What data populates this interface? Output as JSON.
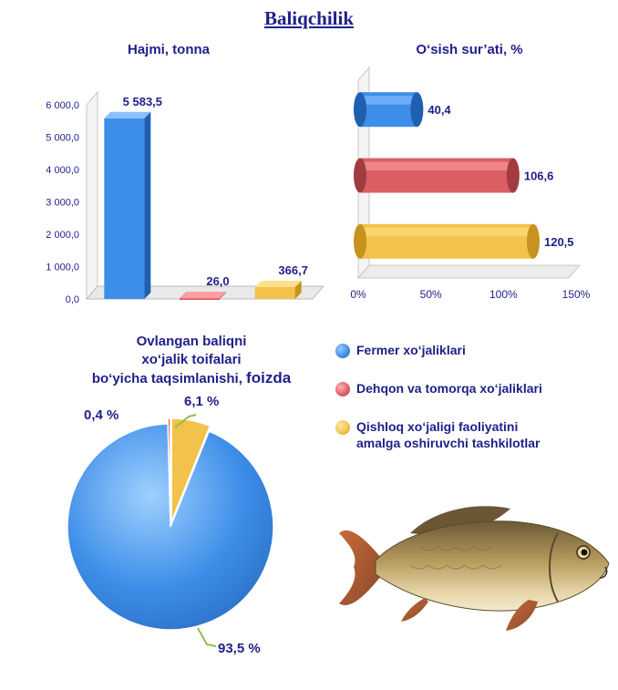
{
  "title": "Baliqchilik",
  "colors": {
    "blue": "#3d8ee8",
    "red": "#d95f63",
    "yellow": "#f2c24a",
    "text": "#1f1f8a"
  },
  "chart_data": [
    {
      "type": "bar",
      "title": "Hajmi, tonna",
      "categories": [
        "Fermer xo‘jaliklari",
        "Dehqon va tomorqa xo‘jaliklari",
        "Qishloq xo‘jaligi faoliyatini amalga oshiruvchi tashkilotlar"
      ],
      "values": [
        5583.5,
        26.0,
        366.7
      ],
      "data_labels": [
        "5 583,5",
        "26,0",
        "366,7"
      ],
      "ylim": [
        0,
        6000
      ],
      "yticks": [
        0,
        1000,
        2000,
        3000,
        4000,
        5000,
        6000
      ],
      "ytick_labels": [
        "0,0",
        "1 000,0",
        "2 000,0",
        "3 000,0",
        "4 000,0",
        "5 000,0",
        "6 000,0"
      ]
    },
    {
      "type": "bar",
      "orientation": "horizontal",
      "title": "O‘sish sur’ati, %",
      "categories": [
        "Fermer xo‘jaliklari",
        "Dehqon va tomorqa xo‘jaliklari",
        "Qishloq xo‘jaligi faoliyatini amalga oshiruvchi tashkilotlar"
      ],
      "values": [
        40.4,
        106.6,
        120.5
      ],
      "data_labels": [
        "40,4",
        "106,6",
        "120,5"
      ],
      "xlim": [
        0,
        150
      ],
      "xticks": [
        0,
        50,
        100,
        150
      ],
      "xtick_labels": [
        "0%",
        "50%",
        "100%",
        "150%"
      ]
    },
    {
      "type": "pie",
      "title_line1": "Ovlangan baliqni",
      "title_line2": "xo‘jalik toifalari",
      "title_line3": "bo‘yicha taqsimlanishi,",
      "title_emph": "foizda",
      "categories": [
        "Fermer xo‘jaliklari",
        "Dehqon va tomorqa xo‘jaliklari",
        "Qishloq xo‘jaligi faoliyatini amalga oshiruvchi tashkilotlar"
      ],
      "values": [
        93.5,
        0.4,
        6.1
      ],
      "data_labels": [
        "93,5 %",
        "0,4 %",
        "6,1 %"
      ]
    }
  ],
  "legend": [
    {
      "label_lines": [
        "Fermer xo‘jaliklari"
      ],
      "color": "#3d8ee8"
    },
    {
      "label_lines": [
        "Dehqon va tomorqa xo‘jaliklari"
      ],
      "color": "#d95f63"
    },
    {
      "label_lines": [
        "Qishloq xo‘jaligi faoliyatini",
        "amalga oshiruvchi tashkilotlar"
      ],
      "color": "#f2c24a"
    }
  ]
}
